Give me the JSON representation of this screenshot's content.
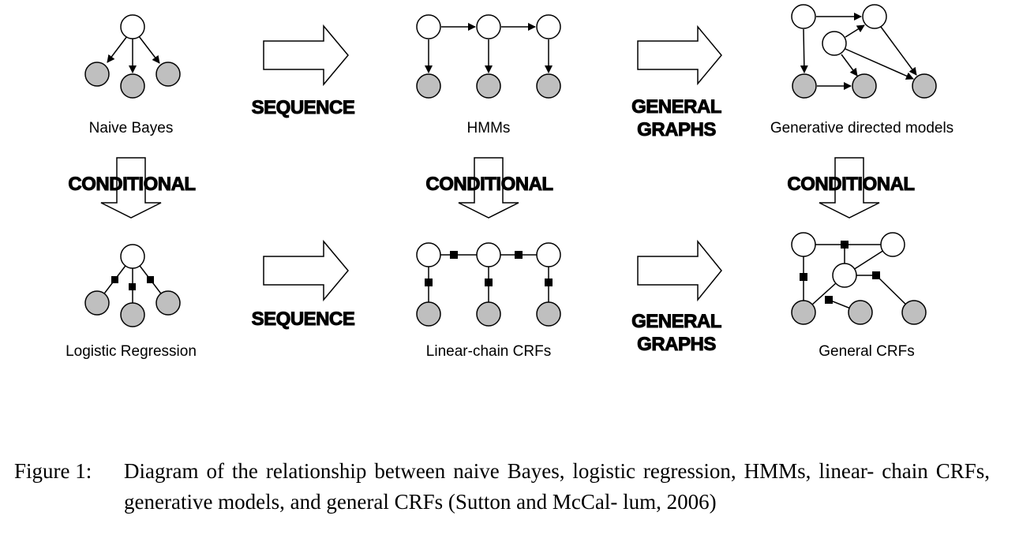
{
  "models": {
    "naive_bayes": "Naive Bayes",
    "hmms": "HMMs",
    "generative_directed": "Generative directed models",
    "logistic_regression": "Logistic Regression",
    "linear_chain_crfs": "Linear-chain CRFs",
    "general_crfs": "General CRFs"
  },
  "arrows": {
    "sequence": "SEQUENCE",
    "general_line1": "GENERAL",
    "general_line2": "GRAPHS",
    "conditional": "CONDITIONAL"
  },
  "caption": {
    "prefix": "Figure 1:",
    "text": "Diagram of the relationship between naive Bayes, logistic regression, HMMs, linear- chain CRFs, generative models, and general CRFs  (Sutton and McCal- lum, 2006)"
  },
  "colors": {
    "observed_node": "#bfbfbf",
    "hidden_node": "#ffffff",
    "factor": "#000000"
  }
}
